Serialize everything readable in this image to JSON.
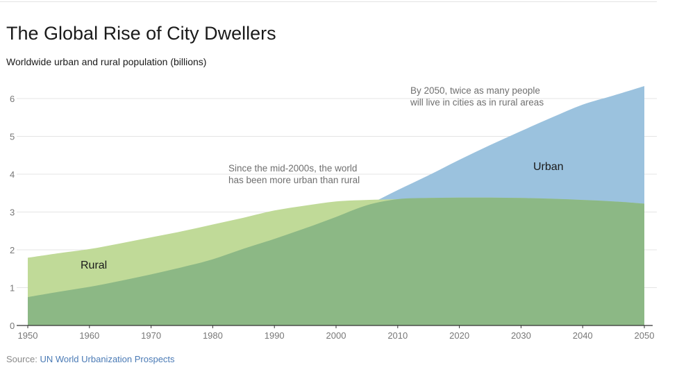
{
  "title": "The Global Rise of City Dwellers",
  "subtitle": "Worldwide urban and rural population (billions)",
  "source": {
    "label": "Source:",
    "link_text": "UN World Urbanization Prospects"
  },
  "colors": {
    "rural": "#c0da98",
    "urban": "#9bc2de",
    "overlap": "#8cb885",
    "grid": "#e4e4e4",
    "axis": "#333333"
  },
  "chart_data": {
    "type": "area",
    "title": "The Global Rise of City Dwellers",
    "subtitle": "Worldwide urban and rural population (billions)",
    "x": [
      1950,
      1955,
      1960,
      1965,
      1970,
      1975,
      1980,
      1985,
      1990,
      1995,
      2000,
      2005,
      2010,
      2015,
      2020,
      2025,
      2030,
      2035,
      2040,
      2045,
      2050
    ],
    "series": [
      {
        "name": "Rural",
        "values": [
          1.79,
          1.91,
          2.02,
          2.17,
          2.33,
          2.49,
          2.67,
          2.85,
          3.04,
          3.17,
          3.28,
          3.32,
          3.34,
          3.37,
          3.38,
          3.38,
          3.37,
          3.35,
          3.32,
          3.28,
          3.22
        ]
      },
      {
        "name": "Urban",
        "values": [
          0.75,
          0.89,
          1.02,
          1.18,
          1.35,
          1.54,
          1.75,
          2.03,
          2.29,
          2.57,
          2.87,
          3.18,
          3.58,
          3.97,
          4.38,
          4.77,
          5.14,
          5.5,
          5.84,
          6.08,
          6.33
        ]
      }
    ],
    "area_labels": [
      "Rural",
      "Urban"
    ],
    "annotations": [
      {
        "lines": [
          "Since the mid-2000s, the world",
          "has been more urban than rural"
        ]
      },
      {
        "lines": [
          "By 2050, twice as many people",
          "will live in cities as in rural areas"
        ]
      }
    ],
    "x_ticks": [
      1950,
      1960,
      1970,
      1980,
      1990,
      2000,
      2010,
      2020,
      2030,
      2040,
      2050
    ],
    "y_ticks": [
      0,
      1,
      2,
      3,
      4,
      5,
      6
    ],
    "xlim": [
      1950,
      2050
    ],
    "ylim": [
      0,
      6.5
    ],
    "grid": true,
    "legend": "none"
  }
}
